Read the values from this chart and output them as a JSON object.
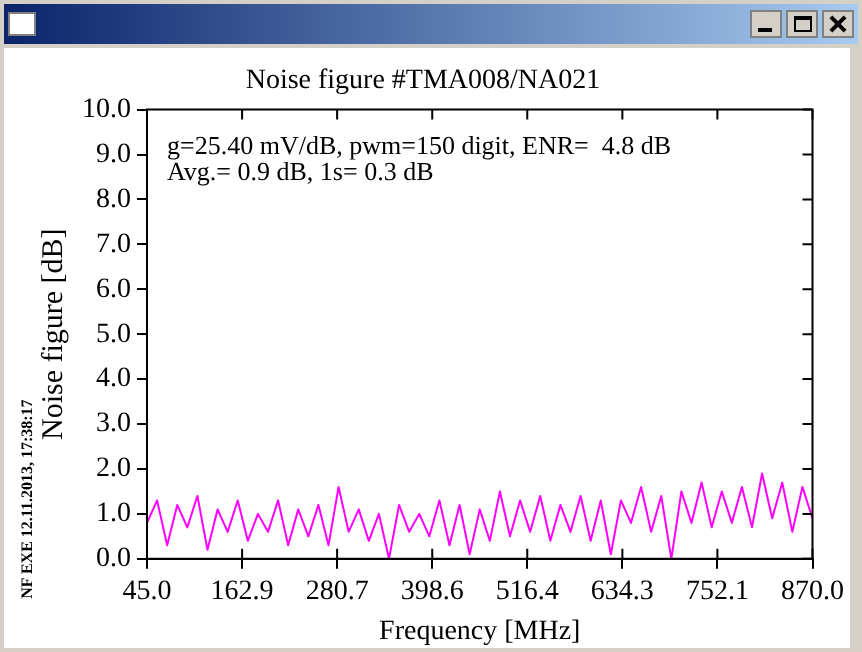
{
  "chart_data": {
    "type": "line",
    "title": "Noise figure #TMA008/NA021",
    "xlabel": "Frequency [MHz]",
    "ylabel": "Noise figure [dB]",
    "annotations": [
      "g=25.40 mV/dB, pwm=150 digit, ENR=  4.8 dB",
      "Avg.= 0.9 dB, 1s= 0.3 dB",
      "NF EXE 12.11.2013, 17:38:17"
    ],
    "x": [
      45,
      57.5,
      70,
      82.5,
      95,
      107.5,
      120,
      132.5,
      145,
      157.5,
      170,
      182.5,
      195,
      207.5,
      220,
      232.5,
      245,
      257.5,
      270,
      282.5,
      295,
      307.5,
      320,
      332.5,
      345,
      357.5,
      370,
      382.5,
      395,
      407.5,
      420,
      432.5,
      445,
      457.5,
      470,
      482.5,
      495,
      507.5,
      520,
      532.5,
      545,
      557.5,
      570,
      582.5,
      595,
      607.5,
      620,
      632.5,
      645,
      657.5,
      670,
      682.5,
      695,
      707.5,
      720,
      732.5,
      745,
      757.5,
      770,
      782.5,
      795,
      807.5,
      820,
      832.5,
      845,
      857.5,
      870
    ],
    "series": [
      {
        "color": "#ff00ff",
        "values": [
          0.8,
          1.3,
          0.3,
          1.2,
          0.7,
          1.4,
          0.2,
          1.1,
          0.6,
          1.3,
          0.4,
          1.0,
          0.6,
          1.3,
          0.3,
          1.1,
          0.5,
          1.2,
          0.3,
          1.6,
          0.6,
          1.1,
          0.4,
          1.0,
          0.0,
          1.2,
          0.6,
          1.0,
          0.5,
          1.3,
          0.3,
          1.2,
          0.1,
          1.1,
          0.4,
          1.5,
          0.5,
          1.3,
          0.6,
          1.4,
          0.4,
          1.2,
          0.6,
          1.4,
          0.4,
          1.3,
          0.1,
          1.3,
          0.8,
          1.6,
          0.6,
          1.4,
          0.0,
          1.5,
          0.8,
          1.7,
          0.7,
          1.5,
          0.8,
          1.6,
          0.7,
          1.9,
          0.9,
          1.7,
          0.6,
          1.6,
          0.9
        ]
      }
    ],
    "xlim": [
      45,
      870
    ],
    "xticks": [
      {
        "value": 45,
        "label": "45.0"
      },
      162.9,
      280.7,
      398.6,
      516.4,
      634.3,
      752.1,
      {
        "value": 870,
        "label": "870.0"
      }
    ],
    "ylim": [
      0,
      10
    ],
    "yticks": [
      {
        "value": 0,
        "label": "0.0"
      },
      {
        "value": 1,
        "label": "1.0"
      },
      {
        "value": 2,
        "label": "2.0"
      },
      {
        "value": 3,
        "label": "3.0"
      },
      {
        "value": 4,
        "label": "4.0"
      },
      {
        "value": 5,
        "label": "5.0"
      },
      {
        "value": 6,
        "label": "6.0"
      },
      {
        "value": 7,
        "label": "7.0"
      },
      {
        "value": 8,
        "label": "8.0"
      },
      {
        "value": 9,
        "label": "9.0"
      },
      {
        "value": 10,
        "label": "10.0"
      }
    ],
    "grid": false,
    "legend": false,
    "marker": "none",
    "line_style": "solid"
  }
}
